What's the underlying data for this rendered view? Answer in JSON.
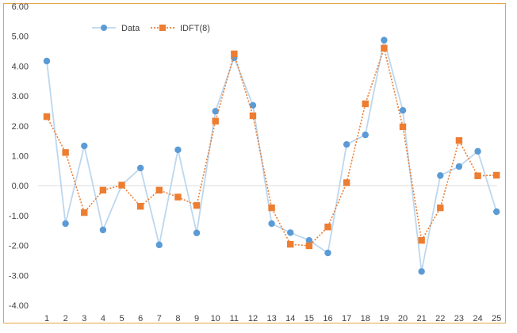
{
  "chart_data": {
    "type": "line",
    "title": "",
    "xlabel": "",
    "ylabel": "",
    "x": [
      1,
      2,
      3,
      4,
      5,
      6,
      7,
      8,
      9,
      10,
      11,
      12,
      13,
      14,
      15,
      16,
      17,
      18,
      19,
      20,
      21,
      22,
      23,
      24,
      25
    ],
    "ylim": [
      -4,
      6
    ],
    "yticks": [
      "-4.00",
      "-3.00",
      "-2.00",
      "-1.00",
      "0.00",
      "1.00",
      "2.00",
      "3.00",
      "4.00",
      "5.00",
      "6.00"
    ],
    "grid": false,
    "legend": "top-left",
    "series": [
      {
        "name": "Data",
        "color": "#5b9bd5",
        "line_color": "#bdd7ee",
        "marker": "circle",
        "values": [
          4.17,
          -1.27,
          1.33,
          -1.48,
          0.02,
          0.59,
          -1.98,
          1.2,
          -1.58,
          2.49,
          4.28,
          2.69,
          -1.27,
          -1.57,
          -1.83,
          -2.25,
          1.38,
          1.7,
          4.87,
          2.52,
          -2.87,
          0.34,
          0.64,
          1.15,
          -0.87
        ]
      },
      {
        "name": "IDFT(8)",
        "color": "#ed7d31",
        "line_color": "#ed7d31",
        "marker": "square",
        "values": [
          2.31,
          1.11,
          -0.9,
          -0.15,
          0.02,
          -0.69,
          -0.15,
          -0.38,
          -0.66,
          2.16,
          4.41,
          2.34,
          -0.74,
          -1.96,
          -2.01,
          -1.38,
          0.1,
          2.74,
          4.6,
          1.97,
          -1.83,
          -0.74,
          1.51,
          0.33,
          0.35
        ]
      }
    ]
  }
}
